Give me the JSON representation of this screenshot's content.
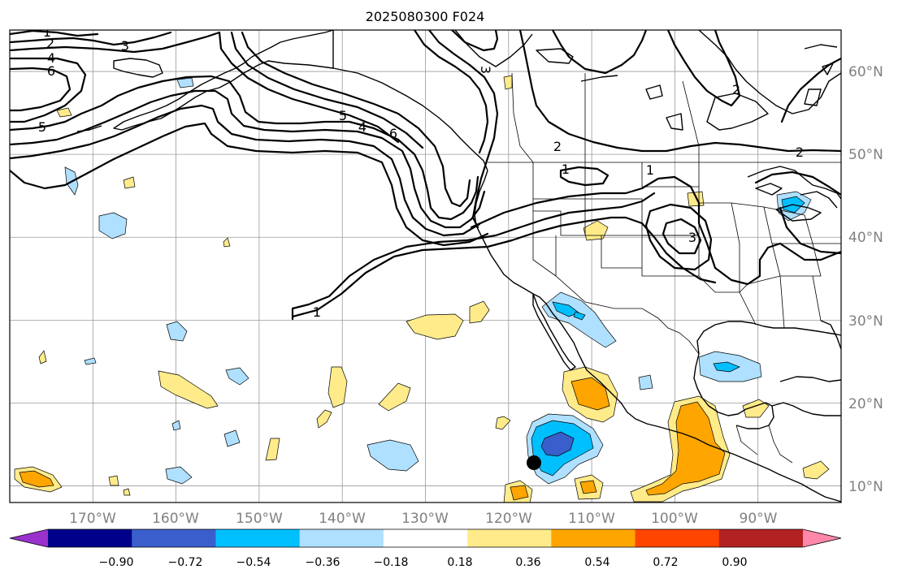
{
  "map": {
    "title": "2025080300 F024",
    "lat_labels": [
      "60°N",
      "50°N",
      "40°N",
      "30°N",
      "20°N",
      "10°N"
    ],
    "lon_labels": [
      "170°W",
      "160°W",
      "150°W",
      "140°W",
      "130°W",
      "120°W",
      "110°W",
      "100°W",
      "90°W"
    ],
    "extent": {
      "lon": [
        -180,
        -80
      ],
      "lat": [
        8,
        65
      ]
    },
    "contour_labels": [
      "1",
      "2",
      "3",
      "4",
      "6",
      "5",
      "3",
      "5",
      "4",
      "6",
      "2",
      "1",
      "2",
      "2",
      "1",
      "3",
      "1"
    ],
    "marker": {
      "lon": -116.5,
      "lat": 12.8,
      "name": "storm-center"
    }
  },
  "colorbar": {
    "ticks": [
      "−0.90",
      "−0.72",
      "−0.54",
      "−0.36",
      "−0.18",
      "0.18",
      "0.36",
      "0.54",
      "0.72",
      "0.90"
    ],
    "colors": [
      "#9932cc",
      "#00008b",
      "#3a5fcd",
      "#00bfff",
      "#afe0ff",
      "#ffffff",
      "#ffeb8a",
      "#ffa500",
      "#ff4500",
      "#b22222",
      "#ff88aa"
    ]
  }
}
